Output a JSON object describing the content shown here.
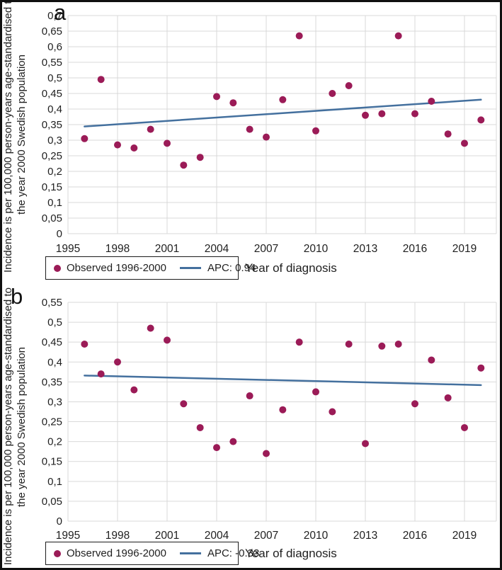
{
  "colors": {
    "observed_point": "#9B1B57",
    "trend_line": "#44709E",
    "gridline": "#D9D9D9",
    "axis_text": "#1F1F1F",
    "figure_border": "#101010"
  },
  "figure": {
    "panels": [
      {
        "label": "a",
        "y_axis_title_line1": "Incidence is per 100,000 person-years age-standardised to",
        "y_axis_title_line2": "the year 2000 Swedish population",
        "x_axis_title": "Year of diagnosis"
      },
      {
        "label": "b",
        "y_axis_title_line1": "Incidence is per 100,000 person-years age-standardised to",
        "y_axis_title_line2": "the year 2000 Swedish population",
        "x_axis_title": "Year of diagnosis"
      }
    ]
  },
  "chart_data": [
    {
      "type": "scatter",
      "panel": "a",
      "title": "",
      "xlabel": "Year of diagnosis",
      "ylabel": "Incidence is per 100,000 person-years age-standardised to the year 2000 Swedish population",
      "xlim": [
        1995,
        2021
      ],
      "ylim": [
        0,
        0.7
      ],
      "ytick_step": 0.05,
      "xticks": [
        1995,
        1998,
        2001,
        2004,
        2007,
        2010,
        2013,
        2016,
        2019
      ],
      "decimal_separator": ",",
      "grid": true,
      "legend_position": "bottom-left",
      "x": [
        1996,
        1997,
        1998,
        1999,
        2000,
        2001,
        2002,
        2003,
        2004,
        2005,
        2006,
        2007,
        2008,
        2009,
        2010,
        2011,
        2012,
        2013,
        2014,
        2015,
        2016,
        2017,
        2018,
        2019,
        2020
      ],
      "series": [
        {
          "name": "Observed 1996-2000",
          "type": "scatter",
          "values": [
            0.305,
            0.495,
            0.285,
            0.275,
            0.335,
            0.29,
            0.22,
            0.245,
            0.44,
            0.42,
            0.335,
            0.31,
            0.43,
            0.635,
            0.33,
            0.45,
            0.475,
            0.38,
            0.385,
            0.635,
            0.385,
            0.425,
            0.32,
            0.29,
            0.365
          ]
        },
        {
          "name": "APC: 0.94",
          "type": "line",
          "x": [
            1996,
            2020
          ],
          "values": [
            0.344,
            0.43
          ]
        }
      ]
    },
    {
      "type": "scatter",
      "panel": "b",
      "title": "",
      "xlabel": "Year of diagnosis",
      "ylabel": "Incidence is per 100,000 person-years age-standardised to the year 2000 Swedish population",
      "xlim": [
        1995,
        2021
      ],
      "ylim": [
        0,
        0.55
      ],
      "ytick_step": 0.05,
      "xticks": [
        1995,
        1998,
        2001,
        2004,
        2007,
        2010,
        2013,
        2016,
        2019
      ],
      "decimal_separator": ",",
      "grid": true,
      "legend_position": "bottom-left",
      "x": [
        1996,
        1997,
        1998,
        1999,
        2000,
        2001,
        2002,
        2003,
        2004,
        2005,
        2006,
        2007,
        2008,
        2009,
        2010,
        2011,
        2012,
        2013,
        2014,
        2015,
        2016,
        2017,
        2018,
        2019,
        2020
      ],
      "series": [
        {
          "name": "Observed 1996-2000",
          "type": "scatter",
          "values": [
            0.445,
            0.37,
            0.4,
            0.33,
            0.485,
            0.455,
            0.295,
            0.235,
            0.185,
            0.2,
            0.315,
            0.17,
            0.28,
            0.45,
            0.325,
            0.275,
            0.445,
            0.195,
            0.44,
            0.445,
            0.295,
            0.405,
            0.31,
            0.235,
            0.385
          ]
        },
        {
          "name": "APC: -0.33",
          "type": "line",
          "x": [
            1996,
            2020
          ],
          "values": [
            0.366,
            0.342
          ]
        }
      ]
    }
  ]
}
